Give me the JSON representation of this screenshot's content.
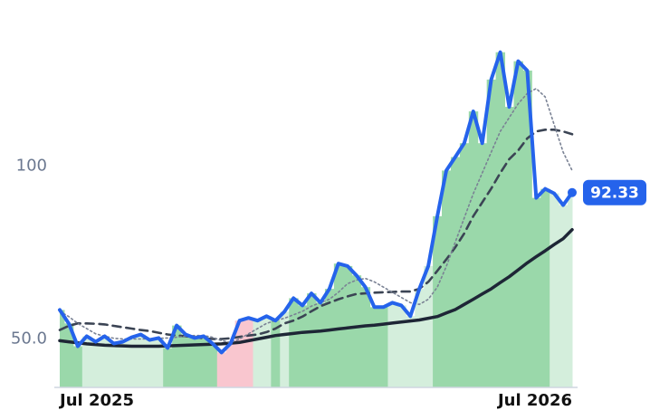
{
  "chart_data": {
    "type": "line",
    "categories": [
      "Jul 2025",
      null,
      null,
      null,
      null,
      null,
      null,
      null,
      null,
      null,
      null,
      null,
      null,
      null,
      null,
      null,
      null,
      null,
      null,
      null,
      null,
      null,
      null,
      null,
      null,
      null,
      null,
      null,
      null,
      null,
      null,
      null,
      null,
      null,
      null,
      null,
      null,
      null,
      null,
      null,
      null,
      null,
      null,
      null,
      null,
      null,
      null,
      null,
      null,
      null,
      null,
      null,
      null,
      null,
      null,
      null,
      null,
      "Jul 2026"
    ],
    "series": [
      {
        "color": "#2563eb",
        "line_style": "solid",
        "values": [
          58.4,
          54.5,
          47.9,
          50.8,
          49.2,
          50.8,
          48.7,
          49.2,
          50.5,
          51.3,
          49.7,
          50.3,
          47.4,
          53.9,
          51.3,
          50.3,
          50.8,
          48.7,
          46.1,
          48.7,
          55.3,
          56.1,
          55.3,
          56.6,
          55.3,
          57.9,
          61.8,
          59.7,
          63.2,
          60.5,
          64.5,
          71.8,
          71.1,
          68.4,
          65.0,
          59.2,
          59.2,
          60.5,
          59.7,
          56.6,
          64.5,
          71.1,
          85.5,
          98.7,
          102.6,
          106.6,
          115.8,
          106.6,
          125.0,
          132.9,
          117.1,
          130.3,
          127.6,
          90.8,
          93.4,
          92.1,
          88.7,
          92.33
        ]
      },
      {
        "color": "#7a8294",
        "line_style": "dotted",
        "values": [
          58.0,
          56.5,
          54.5,
          53.0,
          51.5,
          50.8,
          50.2,
          50.0,
          50.0,
          50.0,
          50.0,
          50.2,
          50.3,
          50.5,
          50.8,
          51.0,
          51.0,
          50.5,
          49.5,
          49.0,
          50.0,
          51.5,
          53.0,
          54.5,
          55.3,
          56.0,
          57.0,
          58.0,
          59.5,
          60.5,
          61.5,
          63.5,
          66.0,
          67.0,
          67.5,
          66.5,
          65.0,
          63.5,
          62.0,
          60.5,
          60.0,
          61.5,
          65.0,
          71.0,
          78.0,
          85.0,
          92.0,
          98.0,
          104.0,
          110.0,
          114.0,
          118.0,
          121.0,
          122.4,
          120.0,
          112.0,
          104.0,
          98.7
        ]
      },
      {
        "color": "#3b4454",
        "line_style": "dashed",
        "values": [
          52.6,
          53.8,
          54.5,
          54.5,
          54.4,
          54.2,
          53.8,
          53.4,
          53.0,
          52.6,
          52.3,
          51.8,
          51.3,
          51.0,
          50.8,
          50.5,
          50.2,
          50.0,
          50.0,
          50.2,
          50.6,
          51.0,
          51.3,
          52.0,
          53.0,
          54.5,
          55.3,
          56.5,
          58.0,
          59.5,
          60.5,
          61.5,
          62.3,
          63.0,
          63.2,
          63.4,
          63.5,
          63.6,
          63.7,
          63.7,
          64.5,
          66.5,
          69.7,
          73.0,
          76.5,
          80.5,
          85.5,
          89.5,
          93.5,
          98.0,
          102.0,
          104.5,
          108.0,
          110.0,
          110.5,
          110.5,
          110.0,
          109.2
        ]
      },
      {
        "color": "#1e2636",
        "line_style": "solid",
        "values": [
          49.5,
          49.2,
          48.9,
          48.6,
          48.4,
          48.2,
          48.1,
          48.0,
          47.9,
          47.9,
          47.9,
          47.9,
          48.0,
          48.1,
          48.2,
          48.3,
          48.4,
          48.5,
          48.6,
          48.8,
          49.0,
          49.5,
          50.0,
          50.5,
          51.0,
          51.3,
          51.6,
          51.9,
          52.1,
          52.3,
          52.6,
          52.9,
          53.2,
          53.5,
          53.8,
          54.0,
          54.3,
          54.6,
          54.9,
          55.2,
          55.5,
          56.0,
          56.5,
          57.5,
          58.5,
          60.0,
          61.5,
          63.0,
          64.5,
          66.3,
          68.0,
          70.0,
          72.0,
          73.8,
          75.5,
          77.3,
          79.0,
          81.6
        ]
      }
    ],
    "fill_colors": [
      "#9ad8aa",
      "#9ad8aa",
      "#9ad8aa",
      "#d4eedc",
      "#d4eedc",
      "#d4eedc",
      "#d4eedc",
      "#d4eedc",
      "#d4eedc",
      "#d4eedc",
      "#d4eedc",
      "#d4eedc",
      "#9ad8aa",
      "#9ad8aa",
      "#9ad8aa",
      "#9ad8aa",
      "#9ad8aa",
      "#9ad8aa",
      "#f9c6cf",
      "#f9c6cf",
      "#f9c6cf",
      "#f9c6cf",
      "#d4eedc",
      "#d4eedc",
      "#9ad8aa",
      "#d4eedc",
      "#9ad8aa",
      "#9ad8aa",
      "#9ad8aa",
      "#9ad8aa",
      "#9ad8aa",
      "#9ad8aa",
      "#9ad8aa",
      "#9ad8aa",
      "#9ad8aa",
      "#9ad8aa",
      "#9ad8aa",
      "#d4eedc",
      "#d4eedc",
      "#d4eedc",
      "#d4eedc",
      "#d4eedc",
      "#9ad8aa",
      "#9ad8aa",
      "#9ad8aa",
      "#9ad8aa",
      "#9ad8aa",
      "#9ad8aa",
      "#9ad8aa",
      "#9ad8aa",
      "#9ad8aa",
      "#9ad8aa",
      "#9ad8aa",
      "#9ad8aa",
      "#9ad8aa",
      "#d4eedc",
      "#d4eedc",
      "#d4eedc"
    ],
    "ylim": [
      36,
      148
    ],
    "yticks": [
      {
        "value": 50,
        "label": "50.0"
      },
      100
    ],
    "grid": false
  }
}
